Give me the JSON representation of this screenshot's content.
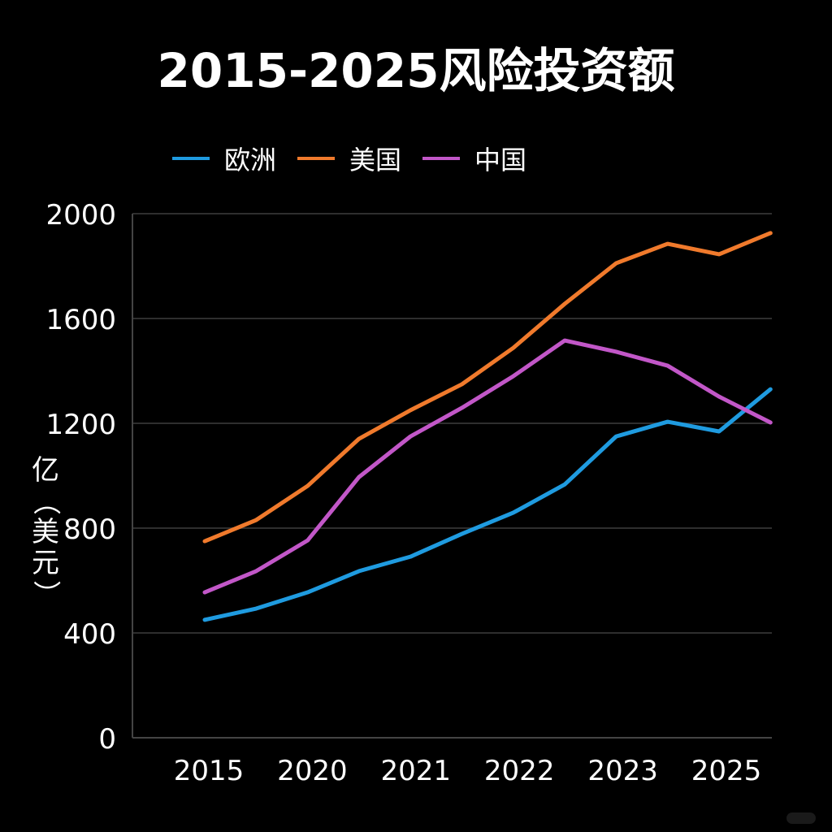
{
  "chart_data": {
    "type": "line",
    "title": "2015-2025风险投资额",
    "ylabel": "亿（美元）",
    "xlabel": "",
    "ylim": [
      0,
      2000
    ],
    "yticks": [
      0,
      400,
      800,
      1200,
      1600,
      2000
    ],
    "grid": true,
    "legend_placement": "top-left",
    "categories": [
      "2015",
      "",
      "2020",
      "",
      "2021",
      "",
      "2022",
      "",
      "2023",
      "",
      "2025",
      ""
    ],
    "xtick_labels": [
      "2015",
      "2020",
      "2021",
      "2022",
      "2023",
      "2025"
    ],
    "series": [
      {
        "name": "欧洲",
        "color": "#1f9be0",
        "values": [
          450,
          493,
          555,
          636,
          691,
          778,
          859,
          967,
          1150,
          1206,
          1169,
          1330
        ]
      },
      {
        "name": "美国",
        "color": "#f07a2c",
        "values": [
          750,
          831,
          961,
          1141,
          1250,
          1349,
          1488,
          1656,
          1811,
          1885,
          1845,
          1926
        ]
      },
      {
        "name": "中国",
        "color": "#c257c8",
        "values": [
          555,
          636,
          753,
          995,
          1150,
          1259,
          1380,
          1516,
          1473,
          1420,
          1302,
          1203
        ]
      }
    ]
  }
}
